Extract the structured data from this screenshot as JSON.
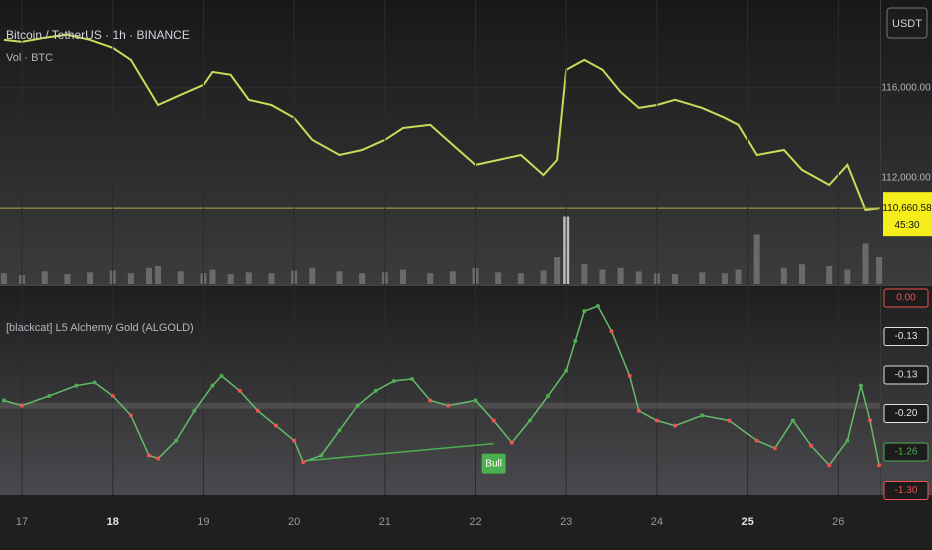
{
  "chart_data": [
    {
      "type": "line",
      "title": "Bitcoin / TetherUS · 1h · BINANCE",
      "subtitle": "Vol · BTC",
      "currency": "USDT",
      "x": [
        16.8,
        17,
        17.25,
        17.5,
        17.75,
        18,
        18.2,
        18.4,
        18.5,
        18.75,
        19,
        19.1,
        19.3,
        19.5,
        19.75,
        20,
        20.2,
        20.5,
        20.75,
        21,
        21.2,
        21.5,
        21.75,
        22,
        22.25,
        22.5,
        22.75,
        22.9,
        23,
        23.2,
        23.4,
        23.6,
        23.8,
        24,
        24.2,
        24.5,
        24.75,
        24.9,
        25.1,
        25.4,
        25.6,
        25.9,
        26.1,
        26.3,
        26.45
      ],
      "values": [
        118130,
        118040,
        118220,
        118360,
        118130,
        117780,
        117240,
        115910,
        115240,
        115690,
        116130,
        116710,
        116580,
        115470,
        115240,
        114670,
        113690,
        113020,
        113240,
        113690,
        114220,
        114360,
        113470,
        112580,
        112800,
        113020,
        112130,
        112800,
        116800,
        117240,
        116800,
        115820,
        115110,
        115240,
        115470,
        115110,
        114670,
        114360,
        113020,
        113240,
        112360,
        111690,
        112580,
        110580,
        110660.58
      ],
      "color": "#c8dc5a",
      "volumes": [
        12,
        10,
        14,
        11,
        13,
        15,
        12,
        18,
        20,
        14,
        12,
        16,
        11,
        13,
        12,
        15,
        18,
        14,
        12,
        13,
        16,
        12,
        14,
        18,
        13,
        12,
        15,
        30,
        75,
        22,
        16,
        18,
        14,
        12,
        11,
        13,
        12,
        16,
        55,
        18,
        22,
        20,
        16,
        45,
        30
      ],
      "volume_color": "#6a6a6a",
      "volume_ylim": [
        0,
        100
      ],
      "xlim": [
        16.757,
        26.46
      ],
      "ylim": [
        107250,
        119900
      ],
      "yticks": [
        {
          "value": 116000,
          "label": "116,000.00"
        },
        {
          "value": 112000,
          "label": "112,000.00"
        }
      ],
      "last_price": {
        "value": 110660.58,
        "label": "110,660.58"
      },
      "countdown": "45:30",
      "grid": true
    },
    {
      "type": "line",
      "title": "[blackcat] L5 Alchemy Gold (ALGOLD)",
      "x": [
        16.8,
        17,
        17.3,
        17.6,
        17.8,
        18,
        18.2,
        18.4,
        18.5,
        18.7,
        18.9,
        19.1,
        19.2,
        19.4,
        19.6,
        19.8,
        20,
        20.1,
        20.3,
        20.5,
        20.7,
        20.9,
        21.1,
        21.3,
        21.5,
        21.7,
        22,
        22.2,
        22.4,
        22.6,
        22.8,
        23,
        23.1,
        23.2,
        23.35,
        23.5,
        23.7,
        23.8,
        24,
        24.2,
        24.5,
        24.8,
        25.1,
        25.3,
        25.5,
        25.7,
        25.9,
        26.1,
        26.25,
        26.35,
        26.45
      ],
      "values": [
        0.1,
        0,
        0.19,
        0.39,
        0.45,
        0.19,
        -0.19,
        -0.97,
        -1.03,
        -0.68,
        -0.1,
        0.39,
        0.58,
        0.29,
        -0.1,
        -0.39,
        -0.68,
        -1.1,
        -0.97,
        -0.48,
        0,
        0.29,
        0.48,
        0.52,
        0.1,
        0,
        0.1,
        -0.29,
        -0.72,
        -0.29,
        0.19,
        0.68,
        1.26,
        1.84,
        1.94,
        1.45,
        0.58,
        -0.1,
        -0.29,
        -0.39,
        -0.19,
        -0.29,
        -0.68,
        -0.83,
        -0.29,
        -0.78,
        -1.16,
        -0.68,
        0.39,
        -0.29,
        -1.16
      ],
      "color": "#66bb6a",
      "up_color": "#4caf50",
      "down_color": "#ef5350",
      "xlim": [
        16.757,
        26.46
      ],
      "ylim": [
        -1.74,
        2.33
      ],
      "xticks": [
        17,
        18,
        19,
        20,
        21,
        22,
        23,
        24,
        25,
        26
      ],
      "bold_xticks": [
        18,
        25
      ],
      "value_tags": [
        {
          "value": 0,
          "label": "0.00",
          "color": "#ef5350"
        },
        {
          "value": -0.13,
          "label": "-0.13",
          "color": "#e0e0e0"
        },
        {
          "value": -0.13,
          "label": "-0.13",
          "color": "#e0e0e0"
        },
        {
          "value": -0.2,
          "label": "-0.20",
          "color": "#e0e0e0"
        },
        {
          "value": -1.26,
          "label": "-1.26",
          "color": "#4caf50"
        },
        {
          "value": -1.3,
          "label": "-1.30",
          "color": "#ef5350"
        }
      ],
      "divergence": {
        "x": [
          20.15,
          22.2
        ],
        "values": [
          -1.07,
          -0.74
        ],
        "label": "Bull",
        "color": "#4caf50"
      }
    }
  ]
}
